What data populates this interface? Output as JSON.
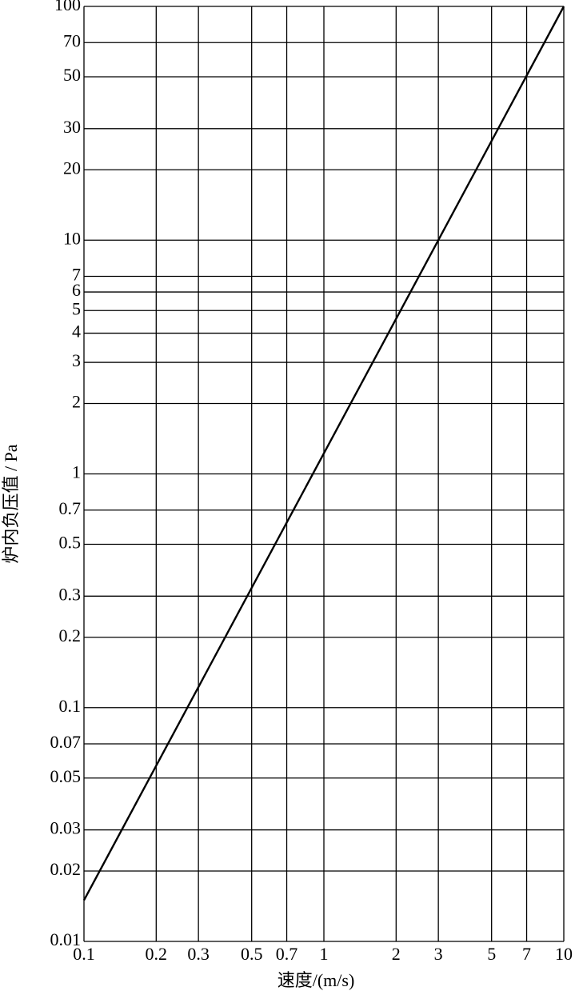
{
  "chart_data": {
    "type": "line",
    "x_label": "速度/(m/s)",
    "y_label": "炉内负压值 / Pa",
    "x": [
      0.1,
      10
    ],
    "series": [
      {
        "color": "#000000",
        "values": [
          0.015,
          100
        ]
      }
    ],
    "xlim": [
      0.1,
      10
    ],
    "ylim": [
      0.01,
      100
    ],
    "xticks": [
      0.1,
      0.2,
      0.3,
      0.5,
      0.7,
      1,
      2,
      3,
      5,
      7,
      10
    ],
    "yticks": [
      0.01,
      0.02,
      0.03,
      0.05,
      0.07,
      0.1,
      0.2,
      0.3,
      0.5,
      0.7,
      1,
      2,
      3,
      4,
      5,
      6,
      7,
      10,
      20,
      30,
      50,
      70,
      100
    ],
    "log_x": true,
    "log_y": true,
    "grid": true
  }
}
